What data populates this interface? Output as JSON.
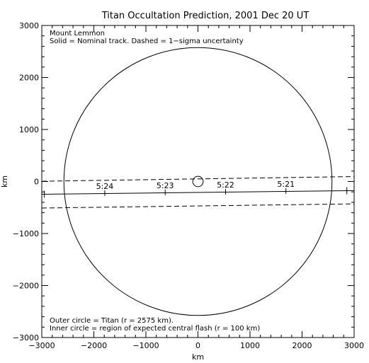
{
  "chart_data": {
    "type": "scatter",
    "title": "Titan Occultation Prediction, 2001 Dec 20 UT",
    "xlabel": "km",
    "ylabel": "km",
    "xlim": [
      -3000,
      3000
    ],
    "ylim": [
      -3000,
      3000
    ],
    "xticks": [
      -3000,
      -2000,
      -1000,
      0,
      1000,
      2000,
      3000
    ],
    "yticks": [
      -3000,
      -2000,
      -1000,
      0,
      1000,
      2000,
      3000
    ],
    "xtick_labels": [
      "−3000",
      "−2000",
      "−1000",
      "0",
      "1000",
      "2000",
      "3000"
    ],
    "ytick_labels": [
      "−3000",
      "−2000",
      "−1000",
      "0",
      "1000",
      "2000",
      "3000"
    ],
    "grid": false,
    "annotations_top": [
      "Mount Lemmon",
      "Solid = Nominal track.  Dashed = 1−sigma uncertainty"
    ],
    "annotations_bottom": [
      "Outer circle = Titan (r = 2575 km).",
      "Inner circle = region of expected central flash (r = 100 km)"
    ],
    "circles": [
      {
        "name": "Titan",
        "cx": 0,
        "cy": 0,
        "r": 2575
      },
      {
        "name": "central flash",
        "cx": 0,
        "cy": 0,
        "r": 100
      }
    ],
    "nominal_track": {
      "x": [
        -3000,
        3000
      ],
      "y": [
        -245,
        -175
      ]
    },
    "uncertainty_upper": {
      "x": [
        -3000,
        3000
      ],
      "y": [
        5,
        95
      ]
    },
    "uncertainty_lower": {
      "x": [
        -3000,
        3000
      ],
      "y": [
        -510,
        -430
      ]
    },
    "time_marks": [
      {
        "label": "5:24",
        "x": -1790,
        "y": -223
      },
      {
        "label": "5:23",
        "x": -630,
        "y": -209
      },
      {
        "label": "5:22",
        "x": 530,
        "y": -196
      },
      {
        "label": "5:21",
        "x": 1690,
        "y": -182
      }
    ],
    "end_marks": [
      {
        "x": -2950,
        "y": -244
      },
      {
        "x": 2860,
        "y": -177
      }
    ]
  }
}
